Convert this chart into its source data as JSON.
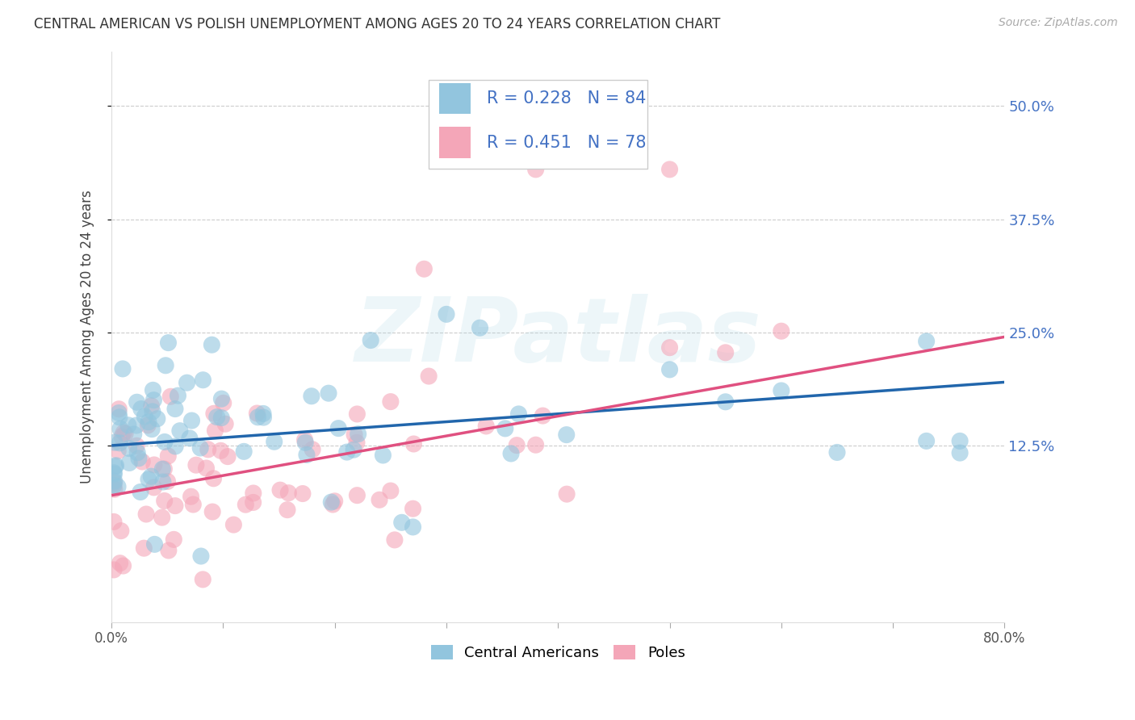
{
  "title": "CENTRAL AMERICAN VS POLISH UNEMPLOYMENT AMONG AGES 20 TO 24 YEARS CORRELATION CHART",
  "source": "Source: ZipAtlas.com",
  "ylabel": "Unemployment Among Ages 20 to 24 years",
  "ytick_labels": [
    "12.5%",
    "25.0%",
    "37.5%",
    "50.0%"
  ],
  "ytick_values": [
    0.125,
    0.25,
    0.375,
    0.5
  ],
  "xlim": [
    0.0,
    0.8
  ],
  "ylim": [
    -0.07,
    0.56
  ],
  "blue_color": "#92C5DE",
  "pink_color": "#F4A6B8",
  "blue_line_color": "#2166AC",
  "pink_line_color": "#E05080",
  "watermark": "ZIPatlas",
  "background_color": "#ffffff",
  "grid_color": "#cccccc",
  "title_color": "#333333",
  "legend_text_color": "#4472c4",
  "blue_reg": [
    0.125,
    0.195
  ],
  "pink_reg": [
    0.07,
    0.245
  ],
  "blue_n": 84,
  "pink_n": 78
}
